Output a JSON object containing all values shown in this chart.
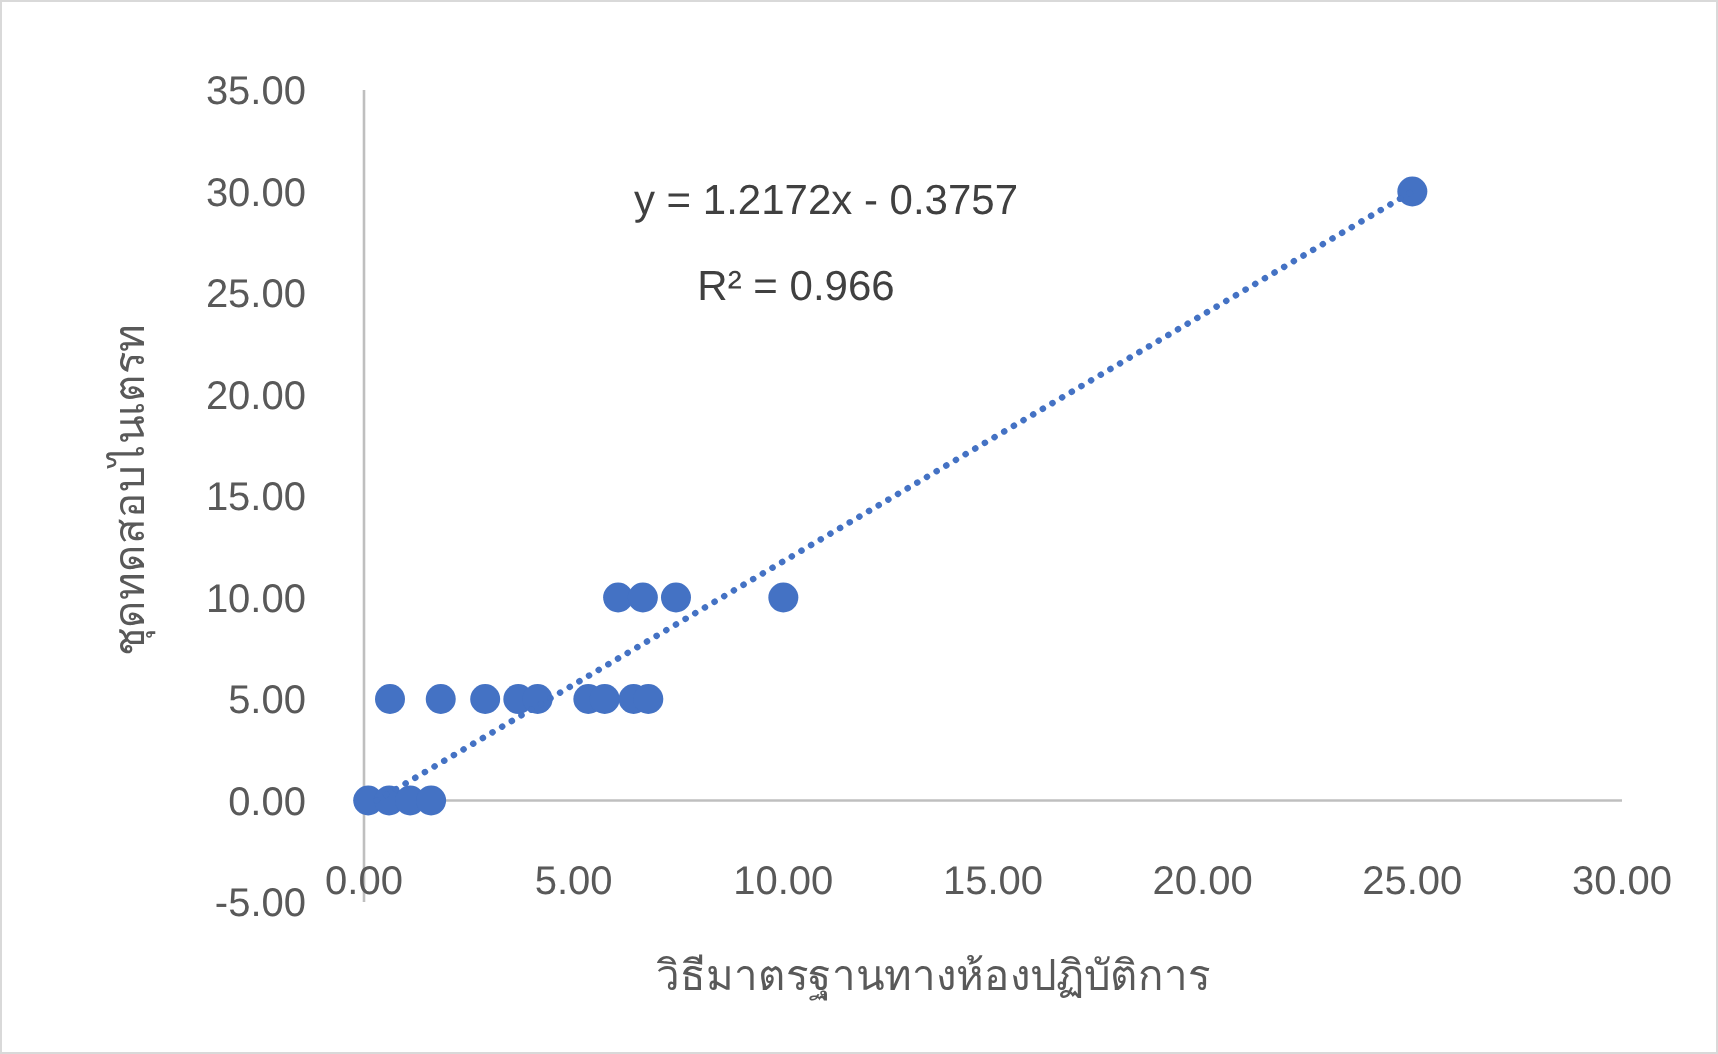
{
  "chart_data": {
    "type": "scatter",
    "xlabel": "วิธีมาตรฐานทางห้องปฏิบัติการ",
    "ylabel": "ชุดทดสอบไนเตรท",
    "annotations": [
      "y = 1.2172x - 0.3757",
      "R² = 0.966"
    ],
    "series": [
      {
        "color": "#4472c4",
        "marker": "circle",
        "x": [
          0.1,
          0.6,
          1.1,
          1.6,
          0.62,
          1.83,
          2.89,
          3.68,
          4.14,
          5.35,
          5.74,
          6.43,
          6.78,
          6.06,
          6.65,
          7.44,
          10.0,
          25.0
        ],
        "values": [
          0,
          0,
          0,
          0,
          5,
          5,
          5,
          5,
          5,
          5,
          5,
          5,
          5,
          10,
          10,
          10,
          10,
          30
        ]
      },
      {
        "type": "line",
        "color": "#4472c4",
        "line_style": "dotted",
        "x": [
          0.3,
          25.0
        ],
        "values": [
          0,
          30
        ]
      }
    ],
    "xlim": [
      0,
      30
    ],
    "ylim": [
      -5,
      35
    ],
    "xticks": [
      {
        "value": 0,
        "label": "0.00"
      },
      {
        "value": 5,
        "label": "5.00"
      },
      {
        "value": 10,
        "label": "10.00"
      },
      {
        "value": 15,
        "label": "15.00"
      },
      {
        "value": 20,
        "label": "20.00"
      },
      {
        "value": 25,
        "label": "25.00"
      },
      {
        "value": 30,
        "label": "30.00"
      }
    ],
    "yticks": [
      {
        "value": -5,
        "label": "-5.00"
      },
      {
        "value": 0,
        "label": "0.00"
      },
      {
        "value": 5,
        "label": "5.00"
      },
      {
        "value": 10,
        "label": "10.00"
      },
      {
        "value": 15,
        "label": "15.00"
      },
      {
        "value": 20,
        "label": "20.00"
      },
      {
        "value": 25,
        "label": "25.00"
      },
      {
        "value": 30,
        "label": "30.00"
      },
      {
        "value": 35,
        "label": "35.00"
      }
    ],
    "grid": false
  }
}
